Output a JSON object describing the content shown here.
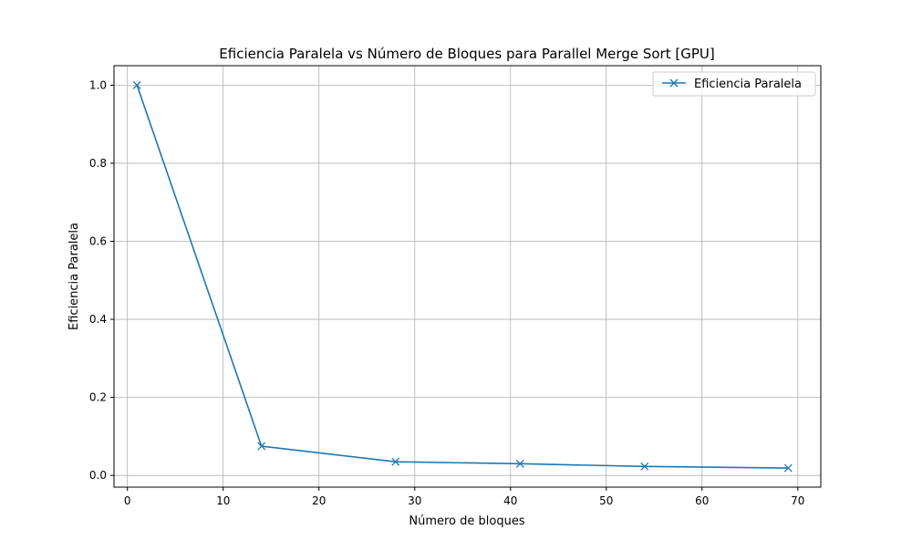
{
  "chart_data": {
    "type": "line",
    "title": "Eficiencia Paralela vs Número de Bloques para Parallel Merge Sort [GPU]",
    "xlabel": "Número de bloques",
    "ylabel": "Eficiencia Paralela",
    "xlim": [
      -1.4,
      72.4
    ],
    "ylim": [
      -0.03,
      1.05
    ],
    "xticks": [
      0,
      10,
      20,
      30,
      40,
      50,
      60,
      70
    ],
    "xtick_labels": [
      "0",
      "10",
      "20",
      "30",
      "40",
      "50",
      "60",
      "70"
    ],
    "yticks": [
      0.0,
      0.2,
      0.4,
      0.6,
      0.8,
      1.0
    ],
    "ytick_labels": [
      "0.0",
      "0.2",
      "0.4",
      "0.6",
      "0.8",
      "1.0"
    ],
    "grid": true,
    "legend_position": "top-right",
    "series": [
      {
        "name": "Eficiencia Paralela",
        "color": "#1f77b4",
        "marker": "x",
        "x": [
          1,
          14,
          28,
          41,
          54,
          69
        ],
        "y": [
          1.0,
          0.075,
          0.035,
          0.03,
          0.023,
          0.019
        ]
      }
    ]
  }
}
